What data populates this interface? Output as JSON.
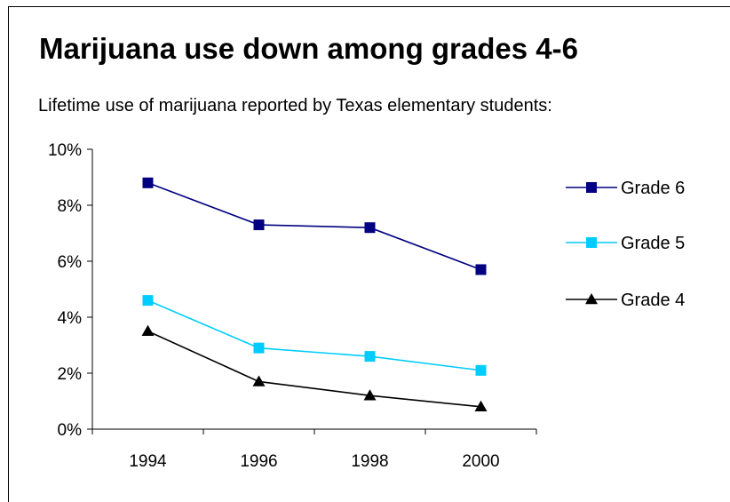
{
  "chart_data": {
    "type": "line",
    "title": "Marijuana use down among grades 4-6",
    "subtitle": "Lifetime use of marijuana reported by Texas elementary students:",
    "xlabel": "",
    "ylabel": "",
    "categories": [
      "1994",
      "1996",
      "1998",
      "2000"
    ],
    "y_ticks": [
      "0%",
      "2%",
      "4%",
      "6%",
      "8%",
      "10%"
    ],
    "ylim": [
      0,
      10
    ],
    "y_unit": "%",
    "grid": false,
    "legend_position": "right",
    "series": [
      {
        "name": "Grade 6",
        "marker": "square",
        "color": "#000080",
        "values": [
          8.8,
          7.3,
          7.2,
          5.7
        ]
      },
      {
        "name": "Grade 5",
        "marker": "square",
        "color": "#00CCFF",
        "values": [
          4.6,
          2.9,
          2.6,
          2.1
        ]
      },
      {
        "name": "Grade 4",
        "marker": "triangle",
        "color": "#000000",
        "values": [
          3.5,
          1.7,
          1.2,
          0.8
        ]
      }
    ]
  }
}
